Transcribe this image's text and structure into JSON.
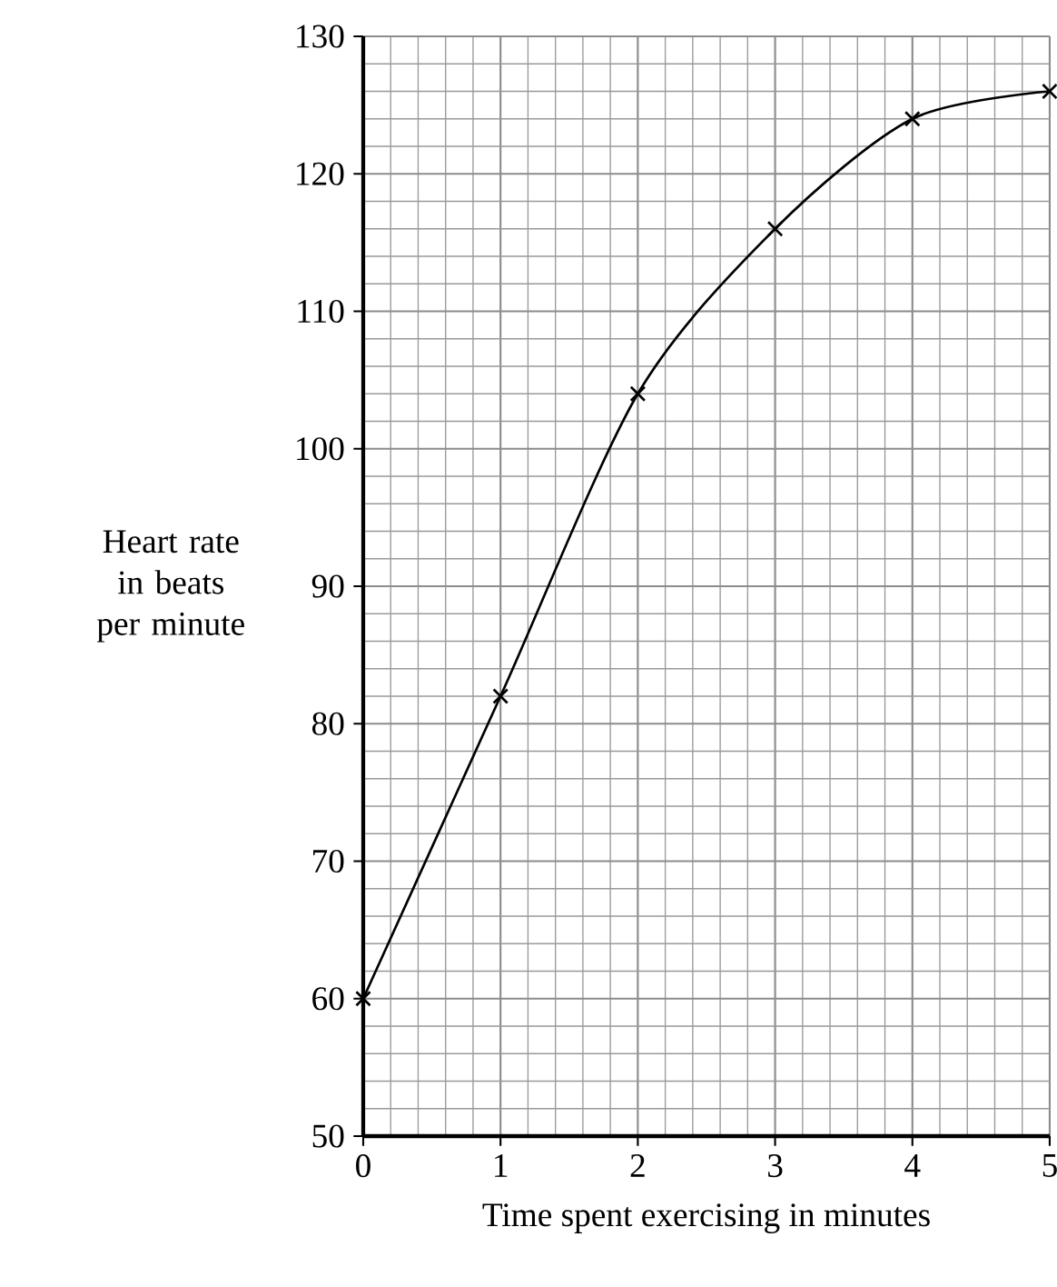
{
  "chart_data": {
    "type": "line",
    "xlabel": "Time spent exercising in minutes",
    "ylabel": "Heart rate in beats per minute",
    "x": [
      0,
      1,
      2,
      3,
      4,
      5
    ],
    "series": [
      {
        "color": "#000000",
        "values": [
          60,
          82,
          104,
          116,
          124,
          126
        ]
      }
    ],
    "xlim": [
      0,
      5
    ],
    "ylim": [
      50,
      130
    ],
    "xticks": [
      0,
      1,
      2,
      3,
      4,
      5
    ],
    "yticks": [
      50,
      60,
      70,
      80,
      90,
      100,
      110,
      120,
      130
    ],
    "grid": true,
    "marker": "cross",
    "line_style": "solid"
  }
}
